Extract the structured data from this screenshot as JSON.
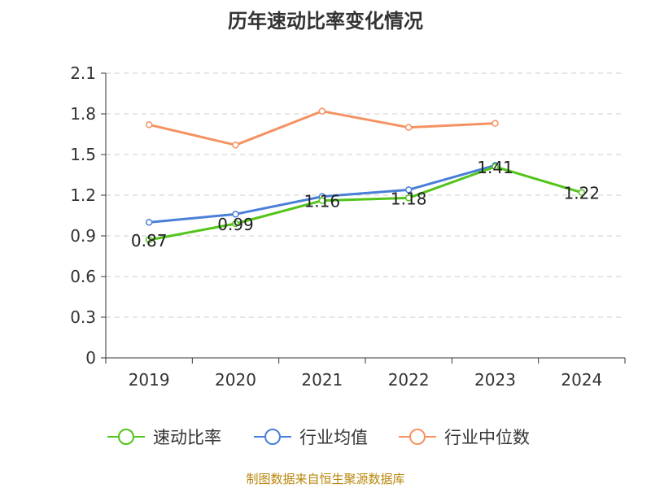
{
  "chart_data": {
    "type": "line",
    "title": "历年速动比率变化情况",
    "categories": [
      "2019",
      "2020",
      "2021",
      "2022",
      "2023",
      "2024"
    ],
    "ylim": [
      0,
      2.1
    ],
    "yticks": [
      "0",
      "0.3",
      "0.6",
      "0.9",
      "1.2",
      "1.5",
      "1.8",
      "2.1"
    ],
    "grid": "horizontal dashed",
    "legend_position": "bottom",
    "series": [
      {
        "name": "速动比率",
        "color": "#52c41a",
        "values": [
          0.87,
          0.99,
          1.16,
          1.18,
          1.41,
          1.22
        ],
        "labels": [
          "0.87",
          "0.99",
          "1.16",
          "1.18",
          "1.41",
          "1.22"
        ]
      },
      {
        "name": "行业均值",
        "color": "#4a7fd8",
        "values": [
          1.0,
          1.06,
          1.19,
          1.24,
          1.42,
          null
        ]
      },
      {
        "name": "行业中位数",
        "color": "#f59262",
        "values": [
          1.72,
          1.57,
          1.82,
          1.7,
          1.73,
          null
        ]
      }
    ],
    "source": "制图数据来自恒生聚源数据库"
  }
}
